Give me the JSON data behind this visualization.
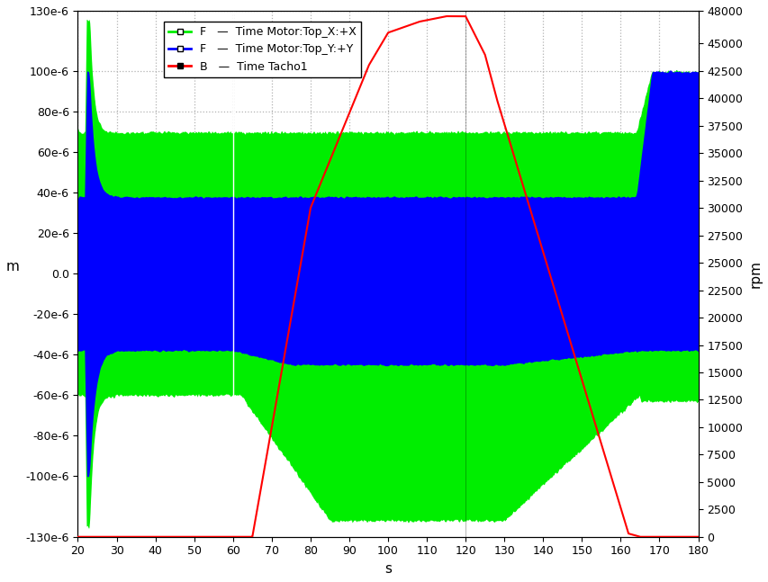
{
  "xlim": [
    20,
    180
  ],
  "ylim_left": [
    -0.00013,
    0.00013
  ],
  "ylim_right": [
    0,
    48000
  ],
  "xlabel": "s",
  "ylabel_left": "m",
  "ylabel_right": "rpm",
  "xticks": [
    20,
    30,
    40,
    50,
    60,
    70,
    80,
    90,
    100,
    110,
    120,
    130,
    140,
    150,
    160,
    170,
    180
  ],
  "yticks_left": [
    -0.00013,
    -0.0001,
    -8e-05,
    -6e-05,
    -4e-05,
    -2e-05,
    0.0,
    2e-05,
    4e-05,
    6e-05,
    8e-05,
    0.0001,
    0.00013
  ],
  "yticks_right": [
    0,
    2500,
    5000,
    7500,
    10000,
    12500,
    15000,
    17500,
    20000,
    22500,
    25000,
    27500,
    30000,
    32500,
    35000,
    37500,
    40000,
    42500,
    45000,
    48000
  ],
  "ytick_labels_left": [
    "-130e-6",
    "-100e-6",
    "-80e-6",
    "-60e-6",
    "-40e-6",
    "-20e-6",
    "0.0",
    "20e-6",
    "40e-6",
    "60e-6",
    "80e-6",
    "100e-6",
    "130e-6"
  ],
  "color_green": "#00EE00",
  "color_blue": "#0000FF",
  "color_red": "#FF0000",
  "color_white": "#FFFFFF",
  "background_color": "#FFFFFF",
  "grid_color": "#AAAAAA",
  "tacho_t": [
    20,
    21,
    22,
    25,
    60,
    62,
    65,
    80,
    95,
    100,
    108,
    115,
    119,
    120,
    125,
    128,
    162,
    165,
    166,
    180
  ],
  "tacho_v": [
    0,
    0,
    0,
    0,
    0,
    0,
    0,
    30000,
    43000,
    46000,
    47000,
    47500,
    47500,
    47500,
    44000,
    40000,
    300,
    0,
    0,
    0
  ],
  "legend_label_x": "F   —  Time Motor:Top_X:+X",
  "legend_label_y": "F   —  Time Motor:Top_Y:+Y",
  "legend_label_t": "B   —  Time Tacho1"
}
